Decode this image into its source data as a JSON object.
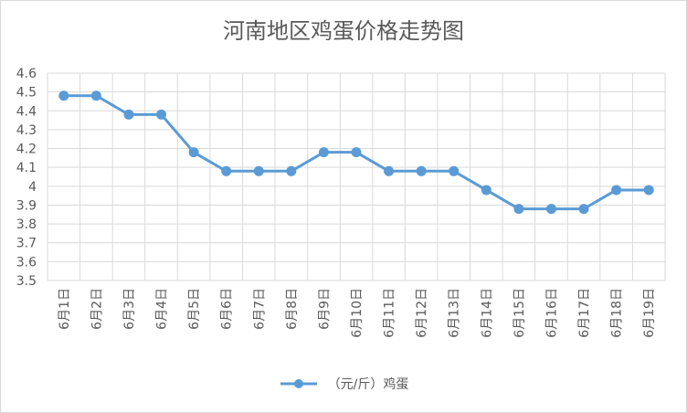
{
  "chart_data": {
    "type": "line",
    "title": "河南地区鸡蛋价格走势图",
    "xlabel": "",
    "ylabel": "",
    "categories": [
      "6月1日",
      "6月2日",
      "6月3日",
      "6月4日",
      "6月5日",
      "6月6日",
      "6月7日",
      "6月8日",
      "6月9日",
      "6月10日",
      "6月11日",
      "6月12日",
      "6月13日",
      "6月14日",
      "6月15日",
      "6月16日",
      "6月17日",
      "6月18日",
      "6月19日"
    ],
    "series": [
      {
        "name": "（元/斤）鸡蛋",
        "values": [
          4.48,
          4.48,
          4.38,
          4.38,
          4.18,
          4.08,
          4.08,
          4.08,
          4.18,
          4.18,
          4.08,
          4.08,
          4.08,
          3.98,
          3.88,
          3.88,
          3.88,
          3.98,
          3.98
        ]
      }
    ],
    "ylim": [
      3.5,
      4.6
    ],
    "yticks": [
      "3.5",
      "3.6",
      "3.7",
      "3.8",
      "3.9",
      "4",
      "4.1",
      "4.2",
      "4.3",
      "4.4",
      "4.5",
      "4.6"
    ],
    "grid": true,
    "legend": "bottom",
    "colors": {
      "line": "#5b9bd5",
      "grid": "#d9d9d9",
      "text": "#595959"
    }
  }
}
